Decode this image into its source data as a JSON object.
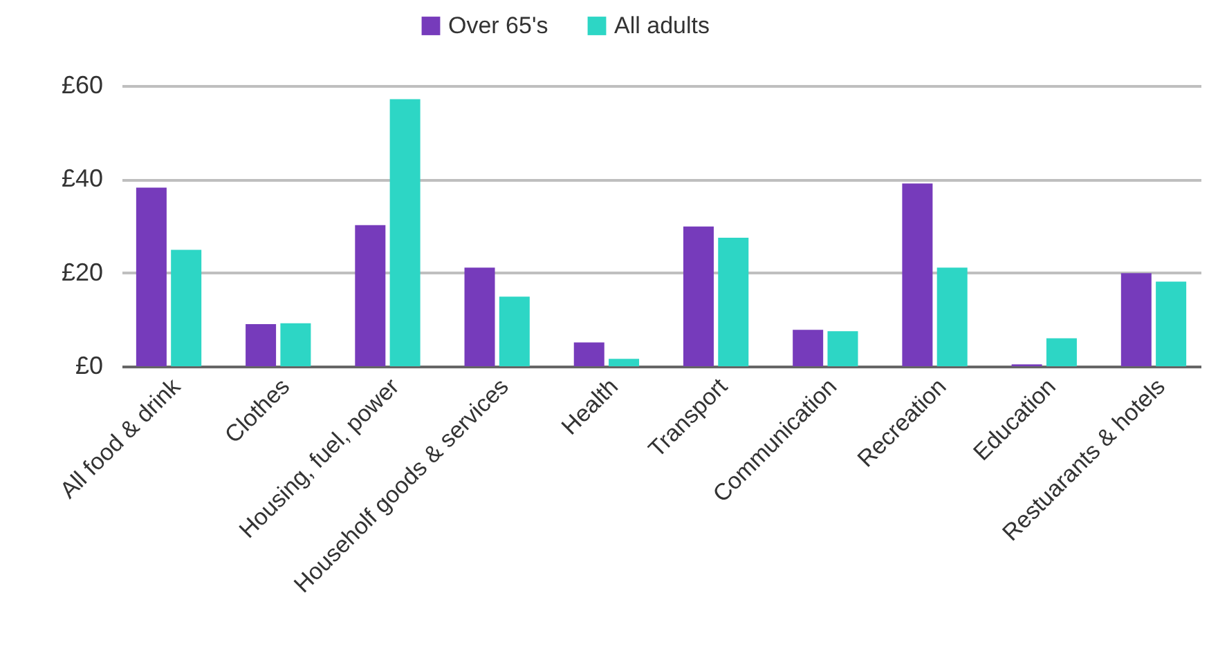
{
  "chart_data": {
    "type": "bar",
    "categories": [
      "All food & drink",
      "Clothes",
      "Housing, fuel, power",
      "Householf goods & services",
      "Health",
      "Transport",
      "Communication",
      "Recreation",
      "Education",
      "Restuarants & hotels"
    ],
    "series": [
      {
        "name": "Over 65's",
        "color": "#763bbb",
        "values": [
          38.2,
          9.0,
          30.2,
          21.1,
          5.1,
          29.9,
          7.8,
          39.1,
          0.4,
          19.9
        ]
      },
      {
        "name": "All adults",
        "color": "#2dd6c5",
        "values": [
          24.9,
          9.2,
          57.1,
          14.9,
          1.6,
          27.5,
          7.5,
          21.1,
          6.0,
          18.1
        ]
      }
    ],
    "ylim": [
      0,
      60
    ],
    "yticks": [
      {
        "value": 0,
        "label": "£0"
      },
      {
        "value": 20,
        "label": "£20"
      },
      {
        "value": 40,
        "label": "£40"
      },
      {
        "value": 60,
        "label": "£60"
      }
    ],
    "grid": "y",
    "legend": "top"
  }
}
